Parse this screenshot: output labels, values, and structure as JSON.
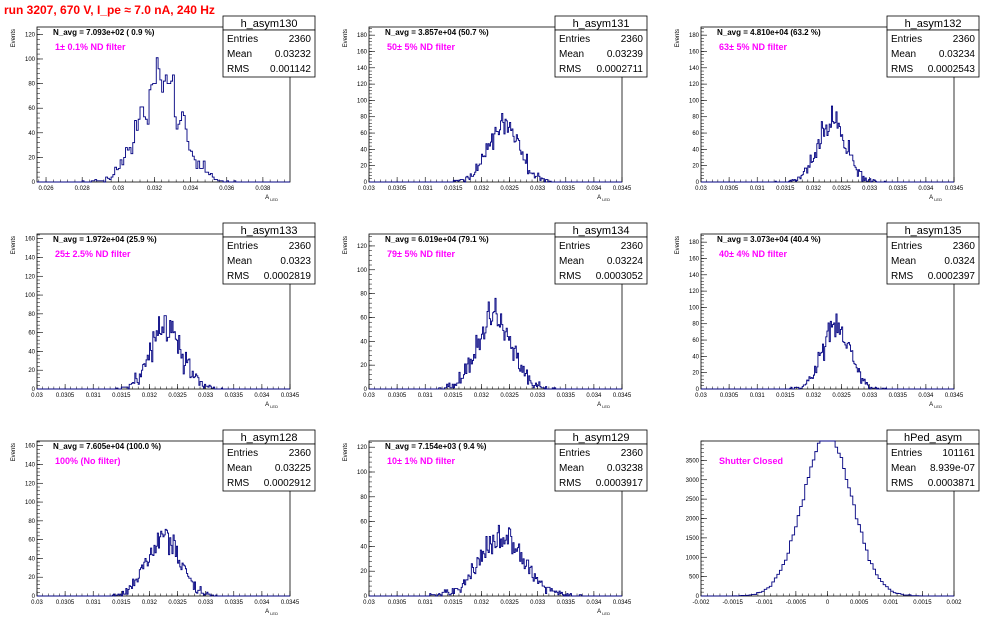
{
  "run_title": "run 3207,   670 V, I_pe ≈ 7.0 nA, 240 Hz",
  "chart_data": [
    {
      "type": "bar",
      "hist_name": "h_asym130",
      "stats": {
        "entries": "2360",
        "mean": "0.03232",
        "rms": "0.001142"
      },
      "navg_text": "N_avg = 7.093e+02 ( 0.9 %)",
      "filter_text": "1± 0.1% ND filter",
      "xlabel": "A_LED",
      "ylabel": "Events",
      "xlim": [
        0.0255,
        0.0395
      ],
      "ylim": [
        0,
        126
      ],
      "xticks": [
        0.026,
        0.028,
        0.03,
        0.032,
        0.034,
        0.036,
        0.038
      ],
      "xtick_labels": [
        "0.026",
        "0.028",
        "0.03",
        "0.032",
        "0.034",
        "0.036",
        "0.038"
      ],
      "yticks": [
        0,
        20,
        40,
        60,
        80,
        100,
        120
      ],
      "mean": 0.03232,
      "sigma": 0.001142,
      "entries": 2360,
      "bin_width": 0.0001
    },
    {
      "type": "bar",
      "hist_name": "h_asym131",
      "stats": {
        "entries": "2360",
        "mean": "0.03239",
        "rms": "0.0002711"
      },
      "navg_text": "N_avg = 3.857e+04 (50.7 %)",
      "filter_text": "50± 5% ND filter",
      "xlabel": "A_LED",
      "ylabel": "Events",
      "xlim": [
        0.03,
        0.0345
      ],
      "ylim": [
        0,
        190
      ],
      "xticks": [
        0.03,
        0.0305,
        0.031,
        0.0315,
        0.032,
        0.0325,
        0.033,
        0.0335,
        0.034,
        0.0345
      ],
      "xtick_labels": [
        "0.03",
        "0.0305",
        "0.031",
        "0.0315",
        "0.032",
        "0.0325",
        "0.033",
        "0.0335",
        "0.034",
        "0.0345"
      ],
      "yticks": [
        0,
        20,
        40,
        60,
        80,
        100,
        120,
        140,
        160,
        180
      ],
      "mean": 0.03239,
      "sigma": 0.0002711,
      "entries": 2360,
      "bin_width": 2e-05
    },
    {
      "type": "bar",
      "hist_name": "h_asym132",
      "stats": {
        "entries": "2360",
        "mean": "0.03234",
        "rms": "0.0002543"
      },
      "navg_text": "N_avg = 4.810e+04 (63.2 %)",
      "filter_text": "63± 5% ND filter",
      "xlabel": "A_LED",
      "ylabel": "Events",
      "xlim": [
        0.03,
        0.0345
      ],
      "ylim": [
        0,
        190
      ],
      "xticks": [
        0.03,
        0.0305,
        0.031,
        0.0315,
        0.032,
        0.0325,
        0.033,
        0.0335,
        0.034,
        0.0345
      ],
      "xtick_labels": [
        "0.03",
        "0.0305",
        "0.031",
        "0.0315",
        "0.032",
        "0.0325",
        "0.033",
        "0.0335",
        "0.034",
        "0.0345"
      ],
      "yticks": [
        0,
        20,
        40,
        60,
        80,
        100,
        120,
        140,
        160,
        180
      ],
      "mean": 0.03234,
      "sigma": 0.0002543,
      "entries": 2360,
      "bin_width": 2e-05
    },
    {
      "type": "bar",
      "hist_name": "h_asym133",
      "stats": {
        "entries": "2360",
        "mean": "0.0323",
        "rms": "0.0002819"
      },
      "navg_text": "N_avg = 1.972e+04 (25.9 %)",
      "filter_text": "25± 2.5% ND filter",
      "xlabel": "A_LED",
      "ylabel": "Events",
      "xlim": [
        0.03,
        0.0345
      ],
      "ylim": [
        0,
        165
      ],
      "xticks": [
        0.03,
        0.0305,
        0.031,
        0.0315,
        0.032,
        0.0325,
        0.033,
        0.0335,
        0.034,
        0.0345
      ],
      "xtick_labels": [
        "0.03",
        "0.0305",
        "0.031",
        "0.0315",
        "0.032",
        "0.0325",
        "0.033",
        "0.0335",
        "0.034",
        "0.0345"
      ],
      "yticks": [
        0,
        20,
        40,
        60,
        80,
        100,
        120,
        140,
        160
      ],
      "mean": 0.0323,
      "sigma": 0.0002819,
      "entries": 2360,
      "bin_width": 2e-05
    },
    {
      "type": "bar",
      "hist_name": "h_asym134",
      "stats": {
        "entries": "2360",
        "mean": "0.03224",
        "rms": "0.0003052"
      },
      "navg_text": "N_avg = 6.019e+04 (79.1 %)",
      "filter_text": "79± 5% ND filter",
      "xlabel": "A_LED",
      "ylabel": "Events",
      "xlim": [
        0.03,
        0.0345
      ],
      "ylim": [
        0,
        130
      ],
      "xticks": [
        0.03,
        0.0305,
        0.031,
        0.0315,
        0.032,
        0.0325,
        0.033,
        0.0335,
        0.034,
        0.0345
      ],
      "xtick_labels": [
        "0.03",
        "0.0305",
        "0.031",
        "0.0315",
        "0.032",
        "0.0325",
        "0.033",
        "0.0335",
        "0.034",
        "0.0345"
      ],
      "yticks": [
        0,
        20,
        40,
        60,
        80,
        100,
        120
      ],
      "mean": 0.03224,
      "sigma": 0.0003052,
      "entries": 2360,
      "bin_width": 2e-05
    },
    {
      "type": "bar",
      "hist_name": "h_asym135",
      "stats": {
        "entries": "2360",
        "mean": "0.0324",
        "rms": "0.0002397"
      },
      "navg_text": "N_avg = 3.073e+04 (40.4 %)",
      "filter_text": "40± 4% ND filter",
      "xlabel": "A_LED",
      "ylabel": "Events",
      "xlim": [
        0.03,
        0.0345
      ],
      "ylim": [
        0,
        190
      ],
      "xticks": [
        0.03,
        0.0305,
        0.031,
        0.0315,
        0.032,
        0.0325,
        0.033,
        0.0335,
        0.034,
        0.0345
      ],
      "xtick_labels": [
        "0.03",
        "0.0305",
        "0.031",
        "0.0315",
        "0.032",
        "0.0325",
        "0.033",
        "0.0335",
        "0.034",
        "0.0345"
      ],
      "yticks": [
        0,
        20,
        40,
        60,
        80,
        100,
        120,
        140,
        160,
        180
      ],
      "mean": 0.0324,
      "sigma": 0.0002397,
      "entries": 2360,
      "bin_width": 2e-05
    },
    {
      "type": "bar",
      "hist_name": "h_asym128",
      "stats": {
        "entries": "2360",
        "mean": "0.03225",
        "rms": "0.0002912"
      },
      "navg_text": "N_avg = 7.605e+04 (100.0 %)",
      "filter_text": "100% (No filter)",
      "xlabel": "A_LED",
      "ylabel": "Events",
      "xlim": [
        0.03,
        0.0345
      ],
      "ylim": [
        0,
        165
      ],
      "xticks": [
        0.03,
        0.0305,
        0.031,
        0.0315,
        0.032,
        0.0325,
        0.033,
        0.0335,
        0.034,
        0.0345
      ],
      "xtick_labels": [
        "0.03",
        "0.0305",
        "0.031",
        "0.0315",
        "0.032",
        "0.0325",
        "0.033",
        "0.0335",
        "0.034",
        "0.0345"
      ],
      "yticks": [
        0,
        20,
        40,
        60,
        80,
        100,
        120,
        140,
        160
      ],
      "mean": 0.03225,
      "sigma": 0.0002912,
      "entries": 2360,
      "bin_width": 2e-05
    },
    {
      "type": "bar",
      "hist_name": "h_asym129",
      "stats": {
        "entries": "2360",
        "mean": "0.03238",
        "rms": "0.0003917"
      },
      "navg_text": "N_avg = 7.154e+03 ( 9.4 %)",
      "filter_text": "10± 1% ND filter",
      "xlabel": "A_LED",
      "ylabel": "Events",
      "xlim": [
        0.03,
        0.0345
      ],
      "ylim": [
        0,
        125
      ],
      "xticks": [
        0.03,
        0.0305,
        0.031,
        0.0315,
        0.032,
        0.0325,
        0.033,
        0.0335,
        0.034,
        0.0345
      ],
      "xtick_labels": [
        "0.03",
        "0.0305",
        "0.031",
        "0.0315",
        "0.032",
        "0.0325",
        "0.033",
        "0.0335",
        "0.034",
        "0.0345"
      ],
      "yticks": [
        0,
        20,
        40,
        60,
        80,
        100,
        120
      ],
      "mean": 0.03238,
      "sigma": 0.0003917,
      "entries": 2360,
      "bin_width": 2e-05
    },
    {
      "type": "bar",
      "hist_name": "hPed_asym",
      "stats": {
        "entries": "101161",
        "mean": "8.939e-07",
        "rms": "0.0003871"
      },
      "navg_text": "",
      "filter_text": "Shutter Closed",
      "xlabel": "",
      "ylabel": "",
      "xlim": [
        -0.002,
        0.002
      ],
      "ylim": [
        0,
        4000
      ],
      "xticks": [
        -0.002,
        -0.0015,
        -0.001,
        -0.0005,
        0,
        0.0005,
        0.001,
        0.0015,
        0.002
      ],
      "xtick_labels": [
        "-0.002",
        "-0.0015",
        "-0.001",
        "-0.0005",
        "0",
        "0.0005",
        "0.001",
        "0.0015",
        "0.002"
      ],
      "yticks": [
        0,
        500,
        1000,
        1500,
        2000,
        2500,
        3000,
        3500
      ],
      "mean": 8.939e-07,
      "sigma": 0.0003871,
      "entries": 101161,
      "bin_width": 4e-05
    }
  ]
}
